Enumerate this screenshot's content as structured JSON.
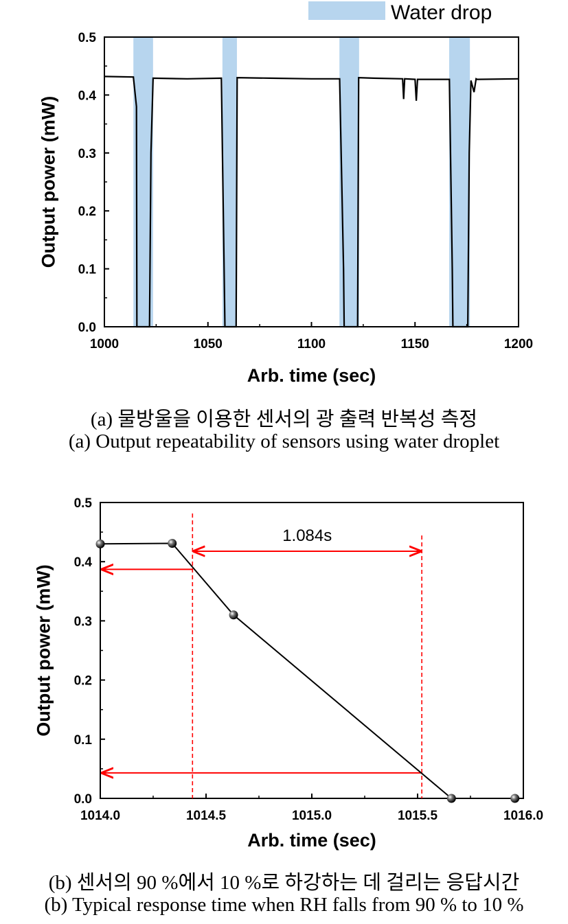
{
  "chart_data": [
    {
      "type": "line",
      "xlabel": "Arb. time (sec)",
      "ylabel": "Output power (mW)",
      "xlim": [
        1000,
        1200
      ],
      "ylim": [
        0,
        0.5
      ],
      "x_ticks": [
        "1000",
        "1050",
        "1100",
        "1150",
        "1200"
      ],
      "y_ticks": [
        "0.0",
        "0.1",
        "0.2",
        "0.3",
        "0.4",
        "0.5"
      ],
      "legend": {
        "label": "Water drop",
        "color": "#b7d5ee",
        "position": "top-right"
      },
      "highlight_regions": [
        [
          1014.0,
          1023.5
        ],
        [
          1057.0,
          1064.0
        ],
        [
          1113.5,
          1123.0
        ],
        [
          1166.5,
          1176.5
        ]
      ],
      "series": [
        {
          "color": "#000000",
          "x": [
            1000,
            1014,
            1015.5,
            1015.7,
            1021.8,
            1022.5,
            1023.5,
            1040,
            1056.5,
            1057.8,
            1058.2,
            1063.6,
            1064.1,
            1080,
            1100,
            1113.6,
            1115.5,
            1115.8,
            1122.3,
            1122.8,
            1130,
            1144,
            1144.5,
            1145,
            1150,
            1150.6,
            1151.2,
            1166.6,
            1168,
            1168.3,
            1175.5,
            1176.2,
            1177,
            1178.5,
            1179.5,
            1180,
            1200
          ],
          "y": [
            0.432,
            0.431,
            0.38,
            0.0,
            0.0,
            0.3,
            0.429,
            0.428,
            0.429,
            0.1,
            0.0,
            0.0,
            0.43,
            0.429,
            0.428,
            0.428,
            0.1,
            0.0,
            0.0,
            0.43,
            0.429,
            0.428,
            0.393,
            0.428,
            0.427,
            0.39,
            0.427,
            0.427,
            0.1,
            0.0,
            0.0,
            0.3,
            0.425,
            0.405,
            0.428,
            0.427,
            0.428
          ]
        }
      ],
      "caption_ko": "(a) 물방울을 이용한 센서의 광 출력 반복성 측정",
      "caption_en": "(a) Output repeatability of sensors using water droplet"
    },
    {
      "type": "line",
      "xlabel": "Arb. time (sec)",
      "ylabel": "Output power (mW)",
      "xlim": [
        1014.0,
        1016.0
      ],
      "ylim": [
        0,
        0.5
      ],
      "x_ticks": [
        "1014.0",
        "1014.5",
        "1015.0",
        "1015.5",
        "1016.0"
      ],
      "y_ticks": [
        "0.0",
        "0.1",
        "0.2",
        "0.3",
        "0.4",
        "0.5"
      ],
      "series": [
        {
          "color": "#000000",
          "marker": "sphere",
          "x": [
            1014.0,
            1014.34,
            1014.63,
            1015.66,
            1015.96
          ],
          "y": [
            0.43,
            0.431,
            0.31,
            0.0,
            0.0
          ]
        }
      ],
      "annotations": {
        "color": "#ff0000",
        "label": "1.084s",
        "t_start": 1014.436,
        "t_end": 1015.52,
        "level_90": 0.387,
        "level_10": 0.043
      },
      "caption_ko": "(b) 센서의 90 %에서 10 %로 하강하는 데 걸리는 응답시간",
      "caption_en": "(b) Typical response time when RH falls from 90 % to 10 %"
    }
  ]
}
